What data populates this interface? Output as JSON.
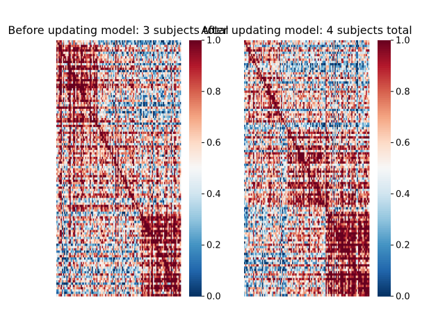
{
  "chart_data": [
    {
      "type": "heatmap",
      "title": "Before updating model: 3 subjects total",
      "xlabel": "",
      "ylabel": "",
      "colormap": "RdBu_r",
      "colorbar": {
        "range": [
          0.0,
          1.0
        ],
        "ticks": [
          "0.0",
          "0.2",
          "0.4",
          "0.6",
          "0.8",
          "1.0"
        ]
      },
      "matrix_size_approx": 112,
      "value_range": [
        0.0,
        1.0
      ],
      "diagonal_value": 1.0,
      "block_means": [
        [
          0.8,
          0.62,
          0.45
        ],
        [
          0.62,
          0.7,
          0.55
        ],
        [
          0.45,
          0.55,
          0.82
        ]
      ]
    },
    {
      "type": "heatmap",
      "title": "After updating model: 4 subjects total",
      "xlabel": "",
      "ylabel": "",
      "colormap": "RdBu_r",
      "colorbar": {
        "range": [
          0.0,
          1.0
        ],
        "ticks": [
          "0.0",
          "0.2",
          "0.4",
          "0.6",
          "0.8",
          "1.0"
        ]
      },
      "matrix_size_approx": 112,
      "value_range": [
        0.0,
        1.0
      ],
      "diagonal_value": 1.0,
      "block_means": [
        [
          0.55,
          0.5,
          0.4
        ],
        [
          0.5,
          0.75,
          0.6
        ],
        [
          0.4,
          0.6,
          0.85
        ]
      ]
    }
  ]
}
